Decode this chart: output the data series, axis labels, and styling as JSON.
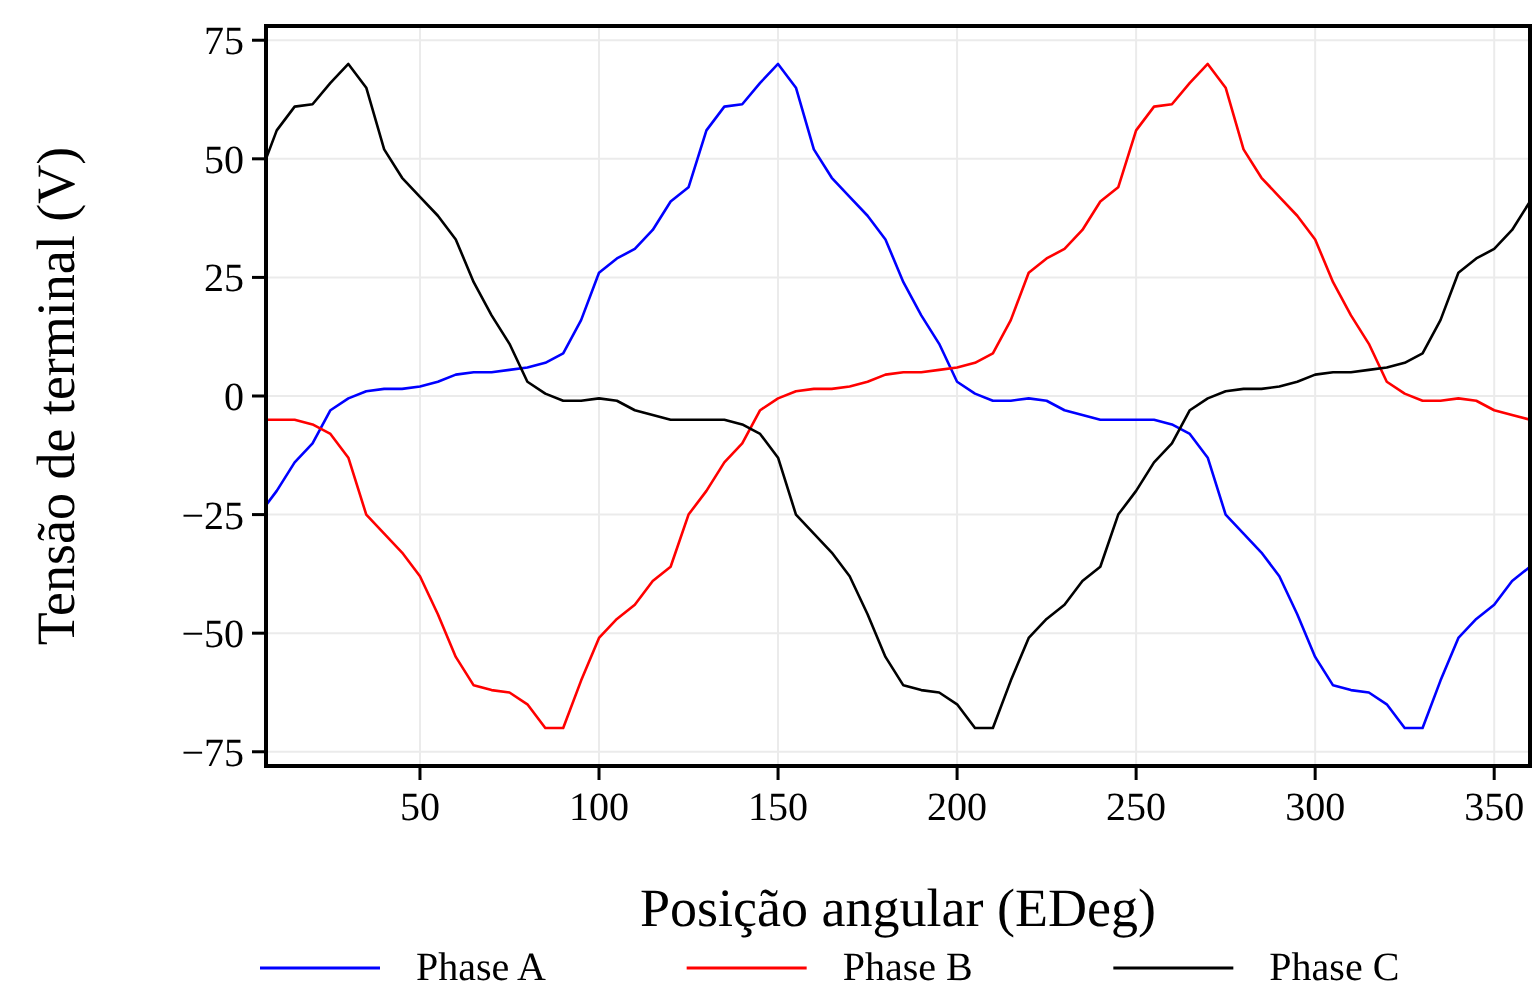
{
  "chart_data": {
    "type": "line",
    "xlabel": "Posição angular (EDeg)",
    "ylabel": "Tensão de terminal (V)",
    "x": [
      7,
      10,
      15,
      20,
      25,
      30,
      35,
      40,
      45,
      50,
      55,
      60,
      65,
      70,
      75,
      80,
      85,
      90,
      95,
      100,
      105,
      110,
      115,
      120,
      125,
      130,
      135,
      140,
      145,
      150,
      155,
      160,
      165,
      170,
      175,
      180,
      185,
      190,
      195,
      200,
      205,
      210,
      215,
      220,
      225,
      230,
      235,
      240,
      245,
      250,
      255,
      260,
      265,
      270,
      275,
      280,
      285,
      290,
      295,
      300,
      305,
      310,
      315,
      320,
      325,
      330,
      335,
      340,
      345,
      350,
      355,
      360
    ],
    "series": [
      {
        "name": "Phase A",
        "color": "#0000ff",
        "values": [
          -23,
          -20,
          -14,
          -10,
          -3,
          -0.5,
          1,
          1.5,
          1.5,
          2,
          3,
          4.5,
          5,
          5,
          5.5,
          6,
          7,
          9,
          16,
          26,
          29,
          31,
          35,
          41,
          44,
          56,
          61,
          61.5,
          66,
          70,
          65,
          52,
          46,
          42,
          38,
          33,
          24,
          17,
          11,
          3,
          0.5,
          -1,
          -1,
          -0.5,
          -1,
          -3,
          -4,
          -5,
          -5,
          -5,
          -5,
          -6,
          -8,
          -13,
          -25,
          -29,
          -33,
          -38,
          -46,
          -55,
          -61,
          -62,
          -62.5,
          -65,
          -70,
          -70,
          -60,
          -51,
          -47,
          -44,
          -39,
          -36
        ]
      },
      {
        "name": "Phase B",
        "color": "#ff0000",
        "values": [
          -5,
          -5,
          -5,
          -6,
          -8,
          -13,
          -25,
          -29,
          -33,
          -38,
          -46,
          -55,
          -61,
          -62,
          -62.5,
          -65,
          -70,
          -70,
          -60,
          -51,
          -47,
          -44,
          -39,
          -36,
          -25,
          -20,
          -14,
          -10,
          -3,
          -0.5,
          1,
          1.5,
          1.5,
          2,
          3,
          4.5,
          5,
          5,
          5.5,
          6,
          7,
          9,
          16,
          26,
          29,
          31,
          35,
          41,
          44,
          56,
          61,
          61.5,
          66,
          70,
          65,
          52,
          46,
          42,
          38,
          33,
          24,
          17,
          11,
          3,
          0.5,
          -1,
          -1,
          -0.5,
          -1,
          -3,
          -4,
          -5
        ]
      },
      {
        "name": "Phase C",
        "color": "#000000",
        "values": [
          50,
          56,
          61,
          61.5,
          66,
          70,
          65,
          52,
          46,
          42,
          38,
          33,
          24,
          17,
          11,
          3,
          0.5,
          -1,
          -1,
          -0.5,
          -1,
          -3,
          -4,
          -5,
          -5,
          -5,
          -5,
          -6,
          -8,
          -13,
          -25,
          -29,
          -33,
          -38,
          -46,
          -55,
          -61,
          -62,
          -62.5,
          -65,
          -70,
          -70,
          -60,
          -51,
          -47,
          -44,
          -39,
          -36,
          -25,
          -20,
          -14,
          -10,
          -3,
          -0.5,
          1,
          1.5,
          1.5,
          2,
          3,
          4.5,
          5,
          5,
          5.5,
          6,
          7,
          9,
          16,
          26,
          29,
          31,
          35,
          41
        ]
      }
    ],
    "xlim": [
      7,
      360
    ],
    "xticks": [
      50,
      100,
      150,
      200,
      250,
      300,
      350
    ],
    "ylim": [
      -78,
      78
    ],
    "yticks": [
      -75,
      -50,
      -25,
      0,
      25,
      50,
      75
    ],
    "grid": true,
    "legend": "bottom",
    "marker": "none",
    "line_style": "solid"
  }
}
